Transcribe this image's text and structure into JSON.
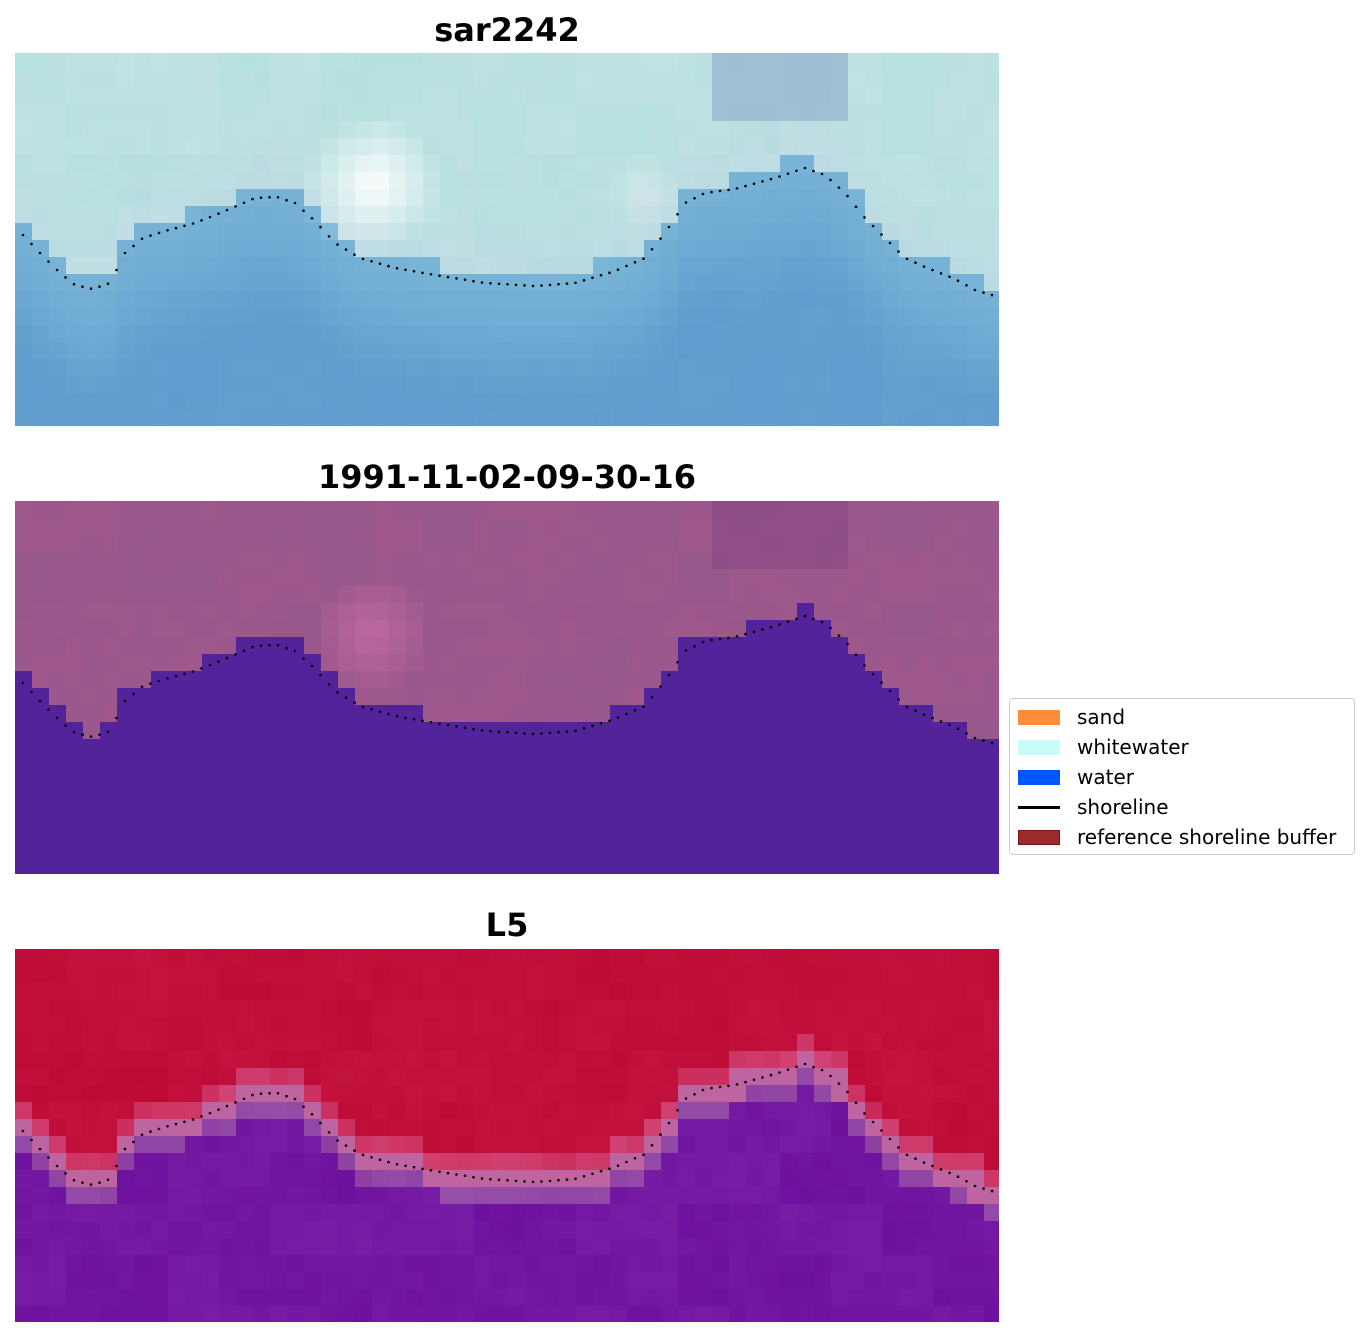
{
  "panels": [
    {
      "title": "sar2242",
      "style": "rgb"
    },
    {
      "title": "1991-11-02-09-30-16",
      "style": "classified"
    },
    {
      "title": "L5",
      "style": "index"
    }
  ],
  "legend": {
    "items": [
      {
        "label": "sand",
        "color": "#ff8c3a",
        "kind": "patch"
      },
      {
        "label": "whitewater",
        "color": "#c8fcfa",
        "kind": "patch"
      },
      {
        "label": "water",
        "color": "#0056ff",
        "kind": "patch"
      },
      {
        "label": "shoreline",
        "color": "#000000",
        "kind": "line"
      },
      {
        "label": "reference shoreline buffer",
        "color": "#9c2a2a",
        "edge": "#7a1515",
        "kind": "patch"
      }
    ]
  },
  "colors": {
    "land_tint": "#a85c8e",
    "classified_water": "#52239a",
    "index_land": "#bb0f3a",
    "index_water": "#6a0fa0"
  }
}
